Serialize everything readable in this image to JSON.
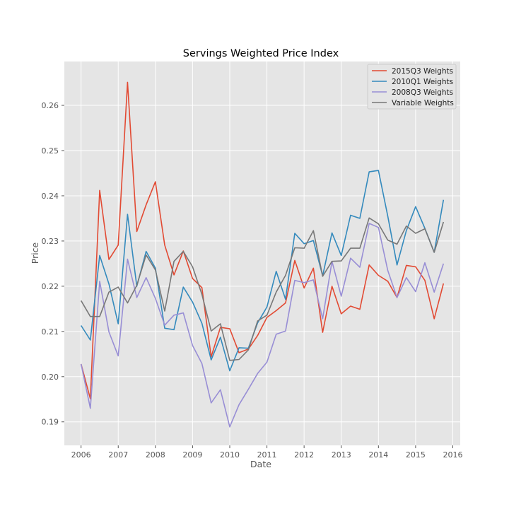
{
  "chart_data": {
    "type": "line",
    "title": "Servings Weighted Price Index",
    "xlabel": "Date",
    "ylabel": "Price",
    "xlim": [
      2005.55,
      2016.2
    ],
    "ylim": [
      0.1848,
      0.2697
    ],
    "x_ticks": [
      2006,
      2007,
      2008,
      2009,
      2010,
      2011,
      2012,
      2013,
      2014,
      2015,
      2016
    ],
    "x_tick_labels": [
      "2006",
      "2007",
      "2008",
      "2009",
      "2010",
      "2011",
      "2012",
      "2013",
      "2014",
      "2015",
      "2016"
    ],
    "y_ticks": [
      0.19,
      0.2,
      0.21,
      0.22,
      0.23,
      0.24,
      0.25,
      0.26
    ],
    "y_tick_labels": [
      "0.19",
      "0.20",
      "0.21",
      "0.22",
      "0.23",
      "0.24",
      "0.25",
      "0.26"
    ],
    "grid": true,
    "legend_position": "top-right",
    "background": "#e5e5e5",
    "x": [
      2006.0,
      2006.25,
      2006.5,
      2006.75,
      2007.0,
      2007.25,
      2007.5,
      2007.75,
      2008.0,
      2008.25,
      2008.5,
      2008.75,
      2009.0,
      2009.25,
      2009.5,
      2009.75,
      2010.0,
      2010.25,
      2010.5,
      2010.75,
      2011.0,
      2011.25,
      2011.5,
      2011.75,
      2012.0,
      2012.25,
      2012.5,
      2012.75,
      2013.0,
      2013.25,
      2013.5,
      2013.75,
      2014.0,
      2014.25,
      2014.5,
      2014.75,
      2015.0,
      2015.25,
      2015.5,
      2015.75
    ],
    "series": [
      {
        "name": "2015Q3 Weights",
        "color": "#e24a33",
        "values": [
          0.2028,
          0.1951,
          0.2412,
          0.2259,
          0.2291,
          0.2651,
          0.2321,
          0.238,
          0.2431,
          0.2291,
          0.2225,
          0.2278,
          0.2217,
          0.2197,
          0.2044,
          0.2109,
          0.2106,
          0.2053,
          0.2061,
          0.2091,
          0.2131,
          0.2146,
          0.2163,
          0.2257,
          0.2196,
          0.224,
          0.2098,
          0.22,
          0.2139,
          0.2156,
          0.2149,
          0.2247,
          0.2224,
          0.2211,
          0.2175,
          0.2246,
          0.2243,
          0.2213,
          0.2128,
          0.2206
        ]
      },
      {
        "name": "2010Q1 Weights",
        "color": "#348abd",
        "values": [
          0.2113,
          0.2081,
          0.2268,
          0.2205,
          0.2117,
          0.2359,
          0.22,
          0.2277,
          0.224,
          0.2107,
          0.2104,
          0.2198,
          0.2165,
          0.2118,
          0.2037,
          0.2087,
          0.2013,
          0.2064,
          0.2063,
          0.2119,
          0.2154,
          0.2233,
          0.2171,
          0.2317,
          0.2294,
          0.2301,
          0.2223,
          0.2318,
          0.2268,
          0.2357,
          0.235,
          0.2453,
          0.2456,
          0.2355,
          0.2247,
          0.2323,
          0.2376,
          0.2328,
          0.2275,
          0.2391
        ]
      },
      {
        "name": "2008Q3 Weights",
        "color": "#988ed5",
        "values": [
          0.2028,
          0.193,
          0.2211,
          0.2099,
          0.2046,
          0.226,
          0.2175,
          0.2219,
          0.2173,
          0.2114,
          0.2136,
          0.2141,
          0.2069,
          0.2029,
          0.1942,
          0.1971,
          0.1889,
          0.1938,
          0.1972,
          0.2007,
          0.2032,
          0.2094,
          0.2101,
          0.2213,
          0.2208,
          0.2214,
          0.2128,
          0.2255,
          0.2178,
          0.2262,
          0.2242,
          0.2339,
          0.233,
          0.2235,
          0.2175,
          0.2219,
          0.2188,
          0.2252,
          0.2187,
          0.225
        ]
      },
      {
        "name": "Variable Weights",
        "color": "#777777",
        "values": [
          0.2168,
          0.2133,
          0.2133,
          0.2187,
          0.2198,
          0.2163,
          0.2202,
          0.2269,
          0.2236,
          0.2145,
          0.2255,
          0.2277,
          0.2243,
          0.2182,
          0.2101,
          0.2117,
          0.2036,
          0.2038,
          0.2059,
          0.2123,
          0.2136,
          0.2187,
          0.2224,
          0.2285,
          0.2284,
          0.2323,
          0.2222,
          0.2255,
          0.2256,
          0.2284,
          0.2284,
          0.2351,
          0.2338,
          0.2302,
          0.2293,
          0.2333,
          0.2317,
          0.2327,
          0.2275,
          0.2342
        ]
      }
    ]
  }
}
